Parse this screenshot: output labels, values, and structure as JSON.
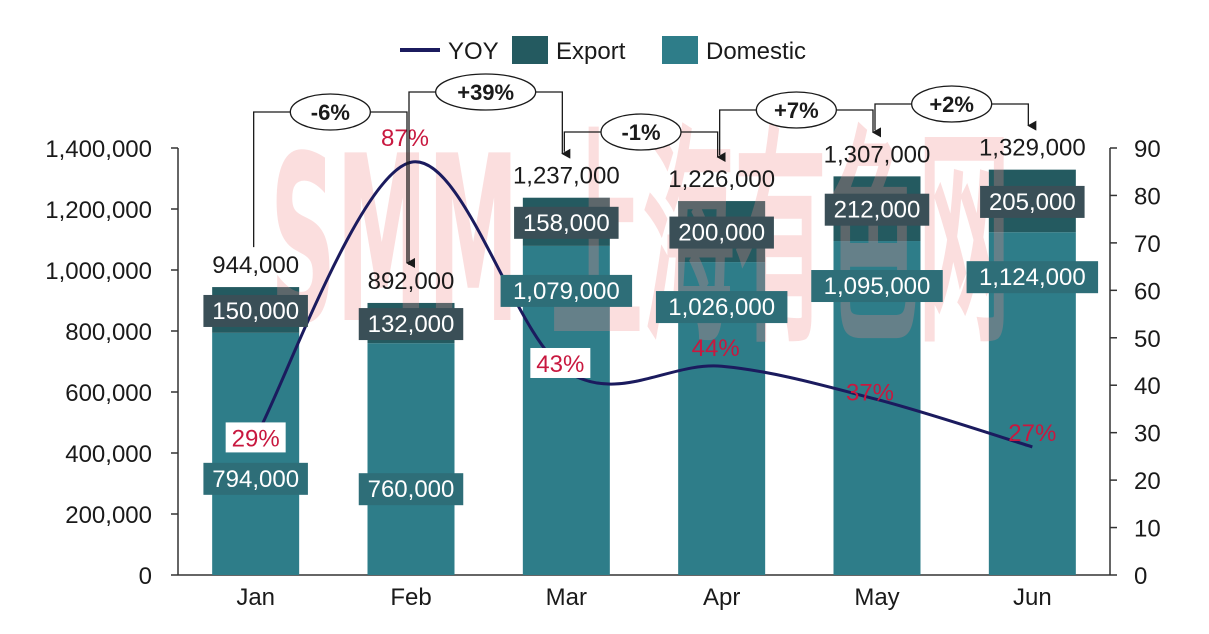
{
  "chart_data": {
    "type": "bar",
    "stacked": true,
    "categories": [
      "Jan",
      "Feb",
      "Mar",
      "Apr",
      "May",
      "Jun"
    ],
    "series": [
      {
        "name": "Domestic",
        "axis": "left",
        "values": [
          794000,
          760000,
          1079000,
          1026000,
          1095000,
          1124000
        ],
        "color": "#2e7d89"
      },
      {
        "name": "Export",
        "axis": "left",
        "values": [
          150000,
          132000,
          158000,
          200000,
          212000,
          205000
        ],
        "color": "#245a60"
      },
      {
        "name": "YOY",
        "type": "line",
        "axis": "right",
        "values": [
          29,
          87,
          43,
          44,
          37,
          27
        ],
        "color": "#1b1b5e"
      }
    ],
    "totals": [
      944000,
      892000,
      1237000,
      1226000,
      1307000,
      1329000
    ],
    "total_labels": [
      "944,000",
      "892,000",
      "1,237,000",
      "1,226,000",
      "1,307,000",
      "1,329,000"
    ],
    "domestic_labels": [
      "794,000",
      "760,000",
      "1,079,000",
      "1,026,000",
      "1,095,000",
      "1,124,000"
    ],
    "export_labels": [
      "150,000",
      "132,000",
      "158,000",
      "200,000",
      "212,000",
      "205,000"
    ],
    "yoy_labels": [
      "29%",
      "87%",
      "43%",
      "44%",
      "37%",
      "27%"
    ],
    "mom_changes": [
      {
        "from": "Jan",
        "to": "Feb",
        "label": "-6%"
      },
      {
        "from": "Feb",
        "to": "Mar",
        "label": "+39%"
      },
      {
        "from": "Mar",
        "to": "Apr",
        "label": "-1%"
      },
      {
        "from": "Apr",
        "to": "May",
        "label": "+7%"
      },
      {
        "from": "May",
        "to": "Jun",
        "label": "+2%"
      }
    ],
    "left_axis": {
      "range": [
        0,
        1400000
      ],
      "ticks": [
        "0",
        "200,000",
        "400,000",
        "600,000",
        "800,000",
        "1,000,000",
        "1,200,000",
        "1,400,000"
      ]
    },
    "right_axis": {
      "range": [
        0,
        90
      ],
      "ticks": [
        "0",
        "10",
        "20",
        "30",
        "40",
        "50",
        "60",
        "70",
        "80",
        "90"
      ]
    },
    "legend": [
      "YOY",
      "Export",
      "Domestic"
    ],
    "legend_position": "top-center",
    "title": "",
    "watermark": "SMM 上海有色网"
  }
}
